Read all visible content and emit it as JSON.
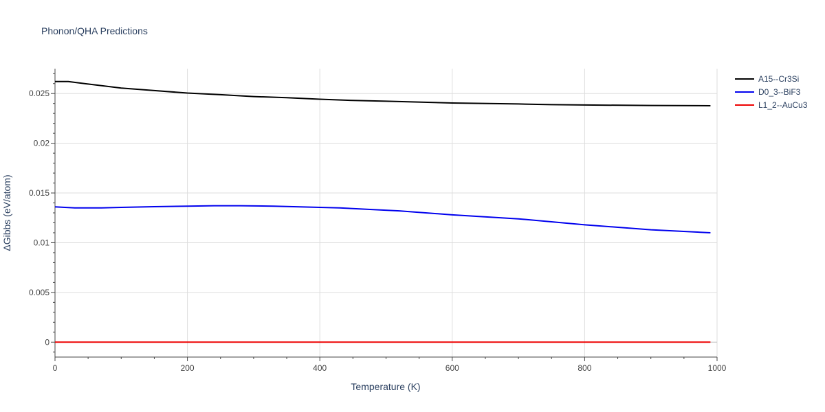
{
  "chart_data": {
    "type": "line",
    "title": "Phonon/QHA Predictions",
    "xlabel": "Temperature (K)",
    "ylabel": "ΔGibbs (eV/atom)",
    "xlim": [
      0,
      1000
    ],
    "ylim": [
      -0.0015,
      0.0275
    ],
    "xticks": [
      0,
      200,
      400,
      600,
      800,
      1000
    ],
    "xtick_labels": [
      "0",
      "200",
      "400",
      "600",
      "800",
      "1000"
    ],
    "yticks": [
      0,
      0.005,
      0.01,
      0.015,
      0.02,
      0.025
    ],
    "ytick_labels": [
      "0",
      "0.005",
      "0.01",
      "0.015",
      "0.02",
      "0.025"
    ],
    "grid": true,
    "legend_position": "top-right",
    "series": [
      {
        "name": "A15--Cr3Si",
        "color": "#000000",
        "x": [
          0,
          20,
          50,
          100,
          150,
          200,
          250,
          300,
          350,
          400,
          450,
          500,
          600,
          700,
          750,
          800,
          900,
          990
        ],
        "y": [
          0.0262,
          0.0262,
          0.02595,
          0.02555,
          0.0253,
          0.02505,
          0.02488,
          0.0247,
          0.02458,
          0.02443,
          0.0243,
          0.02423,
          0.02405,
          0.02395,
          0.02388,
          0.02385,
          0.0238,
          0.02377
        ]
      },
      {
        "name": "D0_3--BiF3",
        "color": "#0000ee",
        "x": [
          0,
          30,
          70,
          100,
          150,
          200,
          240,
          280,
          330,
          400,
          430,
          520,
          600,
          700,
          800,
          900,
          990
        ],
        "y": [
          0.0136,
          0.0135,
          0.0135,
          0.01355,
          0.01362,
          0.01368,
          0.01372,
          0.01372,
          0.01368,
          0.01355,
          0.0135,
          0.0132,
          0.0128,
          0.0124,
          0.0118,
          0.0113,
          0.011
        ]
      },
      {
        "name": "L1_2--AuCu3",
        "color": "#ee0000",
        "x": [
          0,
          990
        ],
        "y": [
          0,
          0
        ]
      }
    ]
  }
}
